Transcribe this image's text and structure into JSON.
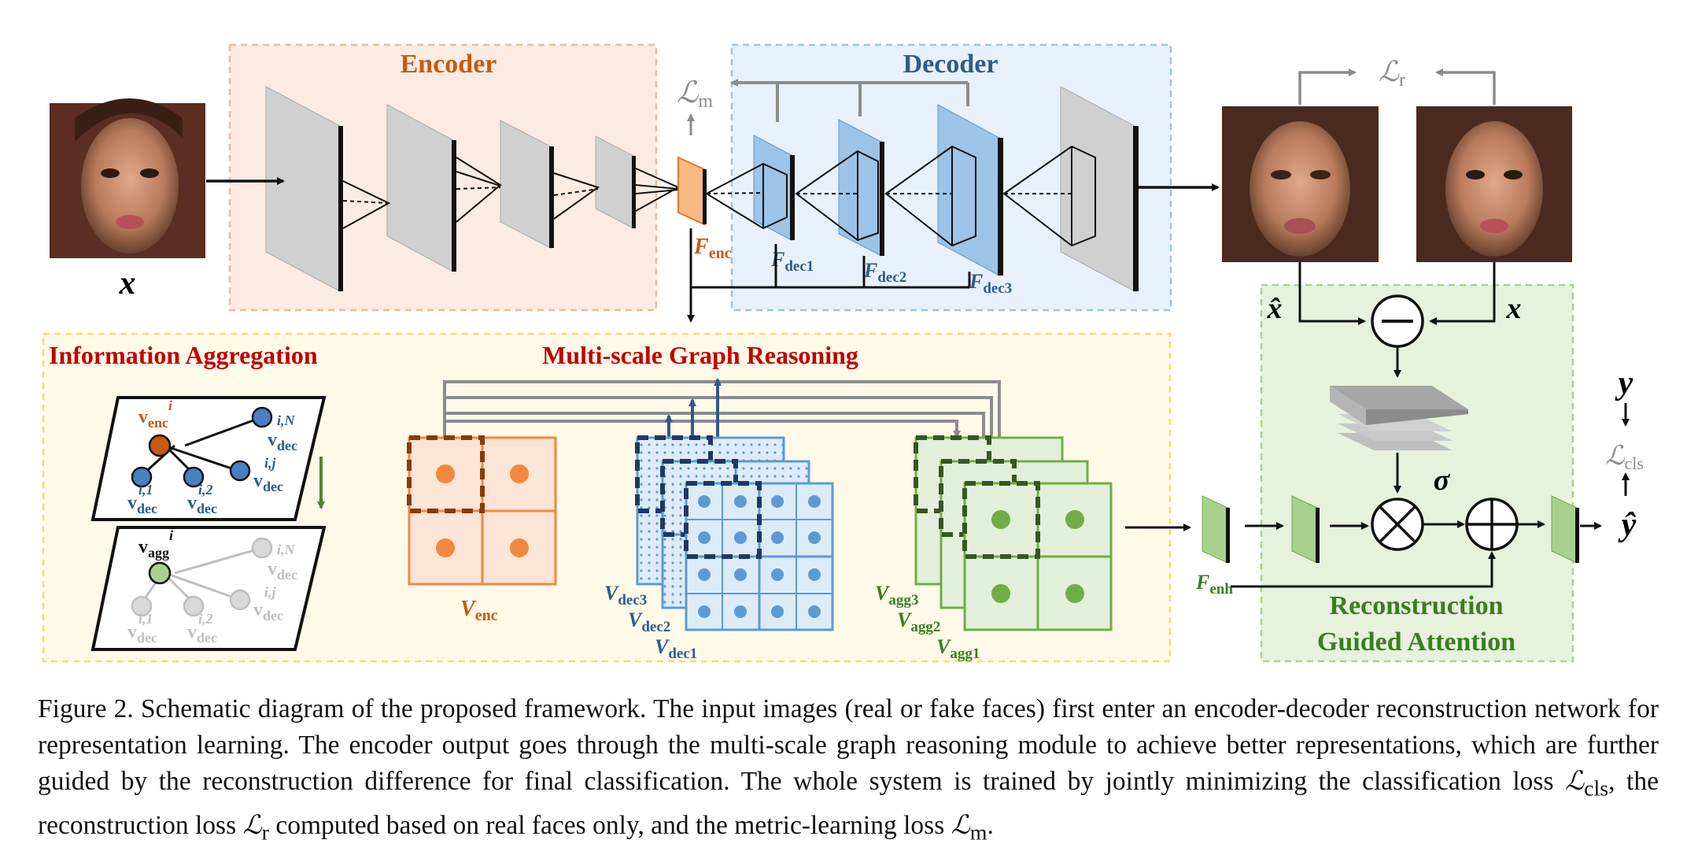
{
  "sections": {
    "encoder": "Encoder",
    "decoder": "Decoder",
    "info_aggregation": "Information Aggregation",
    "graph_reasoning": "Multi-scale Graph Reasoning",
    "rga_line1": "Reconstruction",
    "rga_line2": "Guided Attention"
  },
  "symbols": {
    "x": "x",
    "x_hat": "x̂",
    "y": "y",
    "y_hat": "ŷ",
    "sigma": "σ",
    "loss_m": "ℒ",
    "loss_m_sub": "m",
    "loss_r": "ℒ",
    "loss_r_sub": "r",
    "loss_cls": "ℒ",
    "loss_cls_sub": "cls",
    "F": "F",
    "F_enc_sub": "enc",
    "F_dec1_sub": "dec1",
    "F_dec2_sub": "dec2",
    "F_dec3_sub": "dec3",
    "F_enh_sub": "enh",
    "V": "V",
    "V_enc_sub": "enc",
    "V_dec1_sub": "dec1",
    "V_dec2_sub": "dec2",
    "V_dec3_sub": "dec3",
    "V_agg1_sub": "agg1",
    "V_agg2_sub": "agg2",
    "V_agg3_sub": "agg3",
    "v": "v",
    "enc": "enc",
    "dec": "dec",
    "agg": "agg",
    "sup_i": "i",
    "sup_iN": "i,N",
    "sup_ij": "i,j",
    "sup_i1": "i,1",
    "sup_i2": "i,2"
  },
  "caption": {
    "p1": "Figure 2.  Schematic diagram of the proposed framework.  The input images (real or fake faces) first enter an encoder-decoder reconstruction network for representation learning. The encoder output goes through the multi-scale graph reasoning module to achieve better representations, which are further guided by the reconstruction difference for final classification. The whole system is trained by jointly minimizing the classification loss ",
    "l_cls": "ℒ",
    "l_cls_sub": "cls",
    "p2": ", the reconstruction loss ",
    "l_r": "ℒ",
    "l_r_sub": "r",
    "p3": " computed based on real faces only, and the metric-learning loss ",
    "l_m": "ℒ",
    "l_m_sub": "m",
    "p4": "."
  },
  "colors": {
    "encoder_fill": "#fcebe2",
    "encoder_border": "#f0b89a",
    "encoder_title": "#c55a11",
    "decoder_fill": "#e8f1fb",
    "decoder_border": "#9dc3e6",
    "decoder_title": "#2e5c8a",
    "reasoning_fill": "#fff9e8",
    "reasoning_border": "#ffd966",
    "reasoning_title": "#c00000",
    "attention_fill": "#e6f2dc",
    "attention_border": "#a9d18e",
    "attention_title": "#3c7d22",
    "orange": "#f2883f",
    "blue": "#5b9bd5",
    "green": "#70ad47",
    "gray": "#8c8c8c"
  }
}
